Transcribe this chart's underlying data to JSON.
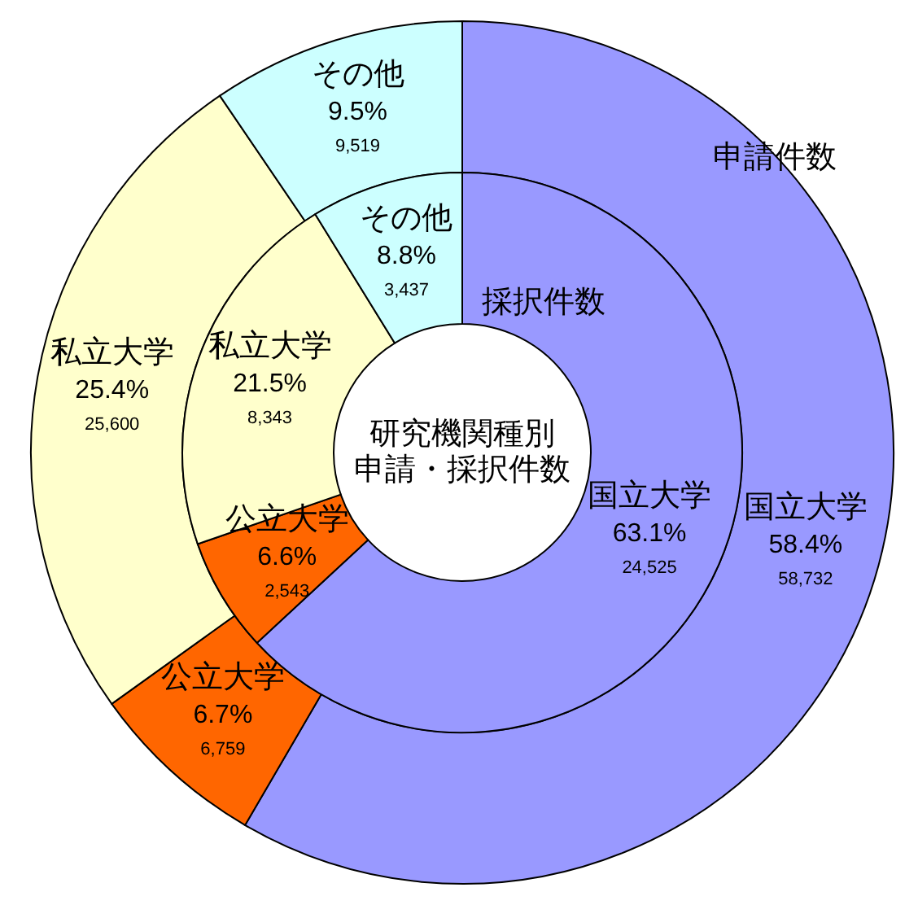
{
  "chart_data": {
    "type": "donut",
    "title": "研究機関種別",
    "subtitle": "申請・採択件数",
    "categories": [
      "国立大学",
      "公立大学",
      "私立大学",
      "その他"
    ],
    "colors": [
      "#9999ff",
      "#ff6600",
      "#ffffcc",
      "#ccffff"
    ],
    "series": [
      {
        "name": "申請件数",
        "values": [
          58.4,
          6.7,
          25.4,
          9.5
        ],
        "value_labels": [
          "58.4%\n58,732",
          "6.7%\n6,759",
          "25.4%\n25,600",
          "9.5%\n9,519"
        ]
      },
      {
        "name": "採択件数",
        "values": [
          63.1,
          6.6,
          21.5,
          8.8
        ],
        "value_labels": [
          "63.1%\n24,525",
          "6.6%\n2,543",
          "21.5%\n8,343",
          "8.8%\n3,437"
        ]
      }
    ]
  }
}
